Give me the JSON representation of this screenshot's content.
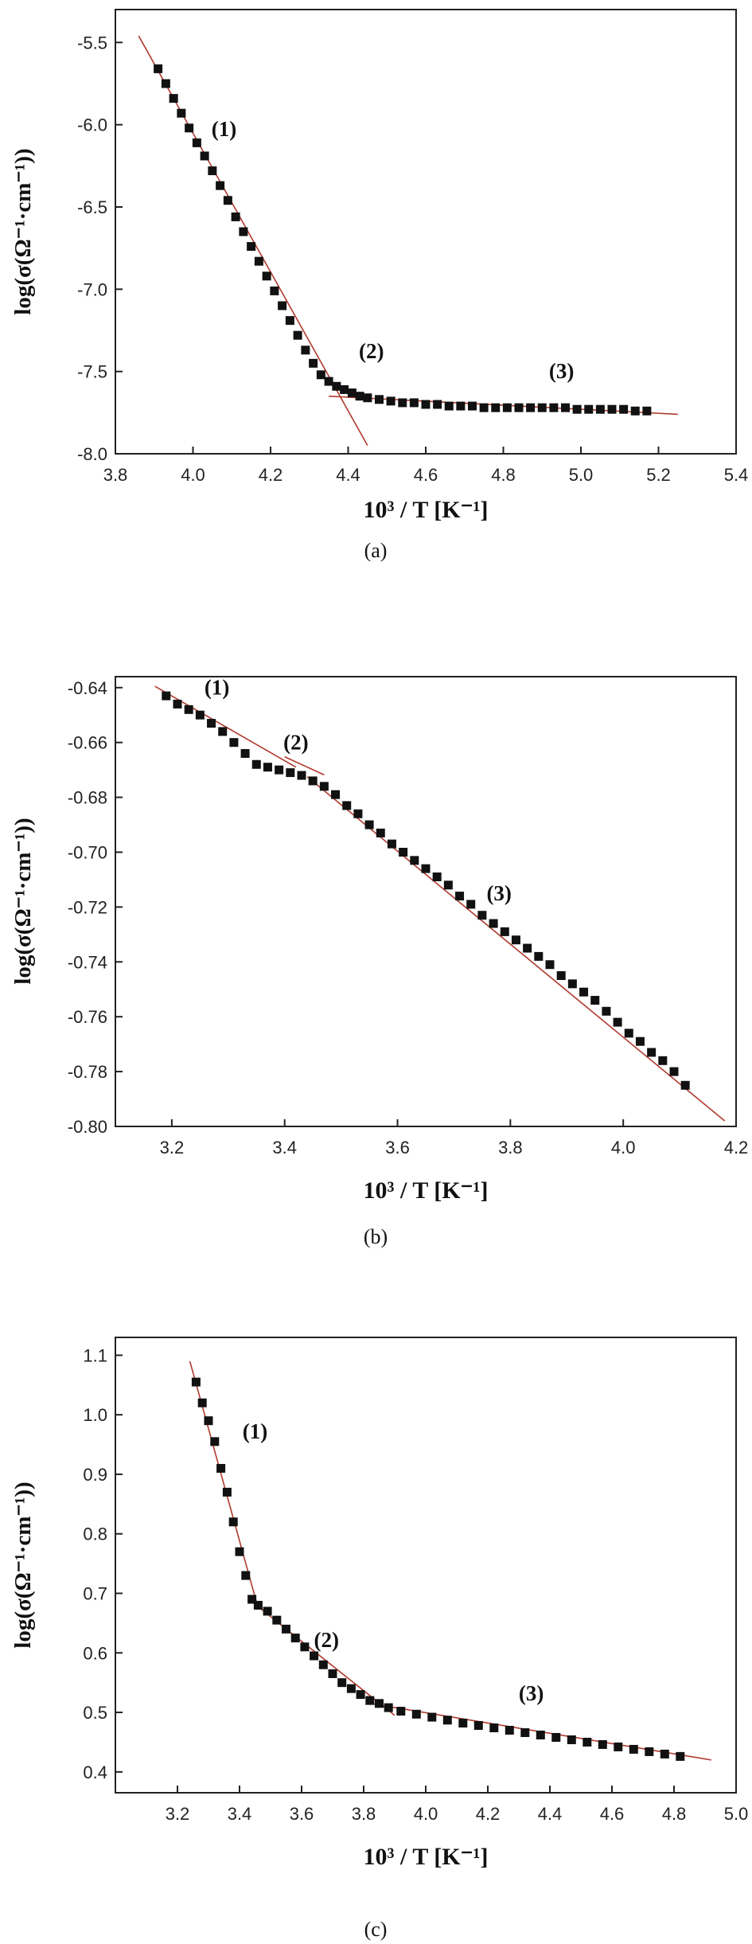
{
  "chart_data": [
    {
      "type": "scatter",
      "caption": "(a)",
      "xlabel": "10³ / T [K⁻¹]",
      "ylabel": "log(σ(Ω⁻¹·cm⁻¹))",
      "xlim": [
        3.8,
        5.4
      ],
      "ylim": [
        -8.0,
        -5.3
      ],
      "xticks": [
        "3.8",
        "4.0",
        "4.2",
        "4.4",
        "4.6",
        "4.8",
        "5.0",
        "5.2",
        "5.4"
      ],
      "xtick_values": [
        3.8,
        4.0,
        4.2,
        4.4,
        4.6,
        4.8,
        5.0,
        5.2,
        5.4
      ],
      "yticks": [
        "-8.0",
        "-7.5",
        "-7.0",
        "-6.5",
        "-6.0",
        "-5.5"
      ],
      "ytick_values": [
        -8.0,
        -7.5,
        -7.0,
        -6.5,
        -6.0,
        -5.5
      ],
      "region_labels": [
        {
          "text": "(1)",
          "x": 4.08,
          "y": -6.07
        },
        {
          "text": "(2)",
          "x": 4.46,
          "y": -7.42
        },
        {
          "text": "(3)",
          "x": 4.95,
          "y": -7.54
        }
      ],
      "fit_lines": [
        {
          "x": [
            3.86,
            4.45
          ],
          "y": [
            -5.46,
            -7.95
          ]
        },
        {
          "x": [
            4.35,
            5.25
          ],
          "y": [
            -7.65,
            -7.76
          ]
        }
      ],
      "points": {
        "x": [
          3.91,
          3.93,
          3.95,
          3.97,
          3.99,
          4.01,
          4.03,
          4.05,
          4.07,
          4.09,
          4.11,
          4.13,
          4.15,
          4.17,
          4.19,
          4.21,
          4.23,
          4.25,
          4.27,
          4.29,
          4.31,
          4.33,
          4.35,
          4.37,
          4.39,
          4.41,
          4.43,
          4.45,
          4.48,
          4.51,
          4.54,
          4.57,
          4.6,
          4.63,
          4.66,
          4.69,
          4.72,
          4.75,
          4.78,
          4.81,
          4.84,
          4.87,
          4.9,
          4.93,
          4.96,
          4.99,
          5.02,
          5.05,
          5.08,
          5.11,
          5.14,
          5.17
        ],
        "y": [
          -5.66,
          -5.75,
          -5.84,
          -5.93,
          -6.02,
          -6.11,
          -6.19,
          -6.28,
          -6.37,
          -6.46,
          -6.56,
          -6.65,
          -6.74,
          -6.83,
          -6.92,
          -7.01,
          -7.1,
          -7.19,
          -7.28,
          -7.37,
          -7.45,
          -7.52,
          -7.56,
          -7.59,
          -7.61,
          -7.63,
          -7.65,
          -7.66,
          -7.67,
          -7.68,
          -7.69,
          -7.69,
          -7.7,
          -7.7,
          -7.71,
          -7.71,
          -7.71,
          -7.72,
          -7.72,
          -7.72,
          -7.72,
          -7.72,
          -7.72,
          -7.72,
          -7.72,
          -7.73,
          -7.73,
          -7.73,
          -7.73,
          -7.73,
          -7.74,
          -7.74
        ]
      }
    },
    {
      "type": "scatter",
      "caption": "(b)",
      "xlabel": "10³ / T [K⁻¹]",
      "ylabel": "log(σ(Ω⁻¹·cm⁻¹))",
      "xlim": [
        3.1,
        4.2
      ],
      "ylim": [
        -0.8,
        -0.636
      ],
      "xticks": [
        "3.2",
        "3.4",
        "3.6",
        "3.8",
        "4.0",
        "4.2"
      ],
      "xtick_values": [
        3.2,
        3.4,
        3.6,
        3.8,
        4.0,
        4.2
      ],
      "yticks": [
        "-0.80",
        "-0.78",
        "-0.76",
        "-0.74",
        "-0.72",
        "-0.70",
        "-0.68",
        "-0.66",
        "-0.64"
      ],
      "ytick_values": [
        -0.8,
        -0.78,
        -0.76,
        -0.74,
        -0.72,
        -0.7,
        -0.68,
        -0.66,
        -0.64
      ],
      "region_labels": [
        {
          "text": "(1)",
          "x": 3.28,
          "y": -0.6425
        },
        {
          "text": "(2)",
          "x": 3.42,
          "y": -0.6625
        },
        {
          "text": "(3)",
          "x": 3.78,
          "y": -0.7175
        }
      ],
      "fit_lines": [
        {
          "x": [
            3.17,
            3.42
          ],
          "y": [
            -0.6395,
            -0.669
          ]
        },
        {
          "x": [
            3.4,
            3.47
          ],
          "y": [
            -0.6652,
            -0.6718
          ]
        },
        {
          "x": [
            3.44,
            4.18
          ],
          "y": [
            -0.6725,
            -0.798
          ]
        }
      ],
      "points": {
        "x": [
          3.19,
          3.21,
          3.23,
          3.25,
          3.27,
          3.29,
          3.31,
          3.33,
          3.35,
          3.37,
          3.39,
          3.41,
          3.43,
          3.45,
          3.47,
          3.49,
          3.51,
          3.53,
          3.55,
          3.57,
          3.59,
          3.61,
          3.63,
          3.65,
          3.67,
          3.69,
          3.71,
          3.73,
          3.75,
          3.77,
          3.79,
          3.81,
          3.83,
          3.85,
          3.87,
          3.89,
          3.91,
          3.93,
          3.95,
          3.97,
          3.99,
          4.01,
          4.03,
          4.05,
          4.07,
          4.09,
          4.11
        ],
        "y": [
          -0.643,
          -0.646,
          -0.648,
          -0.65,
          -0.653,
          -0.656,
          -0.66,
          -0.664,
          -0.668,
          -0.669,
          -0.67,
          -0.671,
          -0.672,
          -0.674,
          -0.676,
          -0.679,
          -0.683,
          -0.686,
          -0.69,
          -0.693,
          -0.697,
          -0.7,
          -0.703,
          -0.706,
          -0.709,
          -0.712,
          -0.716,
          -0.719,
          -0.723,
          -0.726,
          -0.729,
          -0.732,
          -0.735,
          -0.738,
          -0.741,
          -0.745,
          -0.748,
          -0.751,
          -0.754,
          -0.758,
          -0.762,
          -0.766,
          -0.769,
          -0.773,
          -0.776,
          -0.78,
          -0.785
        ]
      }
    },
    {
      "type": "scatter",
      "caption": "(c)",
      "xlabel": "10³ / T [K⁻¹]",
      "ylabel": "log(σ(Ω⁻¹·cm⁻¹))",
      "xlim": [
        3.0,
        5.0
      ],
      "ylim": [
        0.365,
        1.13
      ],
      "xticks": [
        "3.2",
        "3.4",
        "3.6",
        "3.8",
        "4.0",
        "4.2",
        "4.4",
        "4.6",
        "4.8",
        "5.0"
      ],
      "xtick_values": [
        3.2,
        3.4,
        3.6,
        3.8,
        4.0,
        4.2,
        4.4,
        4.6,
        4.8,
        5.0
      ],
      "yticks": [
        "0.4",
        "0.5",
        "0.6",
        "0.7",
        "0.8",
        "0.9",
        "1.0",
        "1.1"
      ],
      "ytick_values": [
        0.4,
        0.5,
        0.6,
        0.7,
        0.8,
        0.9,
        1.0,
        1.1
      ],
      "region_labels": [
        {
          "text": "(1)",
          "x": 3.45,
          "y": 0.96
        },
        {
          "text": "(2)",
          "x": 3.68,
          "y": 0.61
        },
        {
          "text": "(3)",
          "x": 4.34,
          "y": 0.52
        }
      ],
      "fit_lines": [
        {
          "x": [
            3.24,
            3.46
          ],
          "y": [
            1.09,
            0.675
          ]
        },
        {
          "x": [
            3.43,
            3.9
          ],
          "y": [
            0.69,
            0.495
          ]
        },
        {
          "x": [
            3.82,
            4.92
          ],
          "y": [
            0.515,
            0.42
          ]
        }
      ],
      "points": {
        "x": [
          3.26,
          3.28,
          3.3,
          3.32,
          3.34,
          3.36,
          3.38,
          3.4,
          3.42,
          3.44,
          3.46,
          3.49,
          3.52,
          3.55,
          3.58,
          3.61,
          3.64,
          3.67,
          3.7,
          3.73,
          3.76,
          3.79,
          3.82,
          3.85,
          3.88,
          3.92,
          3.97,
          4.02,
          4.07,
          4.12,
          4.17,
          4.22,
          4.27,
          4.32,
          4.37,
          4.42,
          4.47,
          4.52,
          4.57,
          4.62,
          4.67,
          4.72,
          4.77,
          4.82
        ],
        "y": [
          1.055,
          1.02,
          0.99,
          0.955,
          0.91,
          0.87,
          0.82,
          0.77,
          0.73,
          0.69,
          0.68,
          0.67,
          0.655,
          0.64,
          0.625,
          0.61,
          0.595,
          0.58,
          0.565,
          0.55,
          0.54,
          0.53,
          0.52,
          0.515,
          0.508,
          0.502,
          0.497,
          0.492,
          0.487,
          0.482,
          0.478,
          0.474,
          0.47,
          0.466,
          0.462,
          0.458,
          0.454,
          0.45,
          0.446,
          0.442,
          0.438,
          0.434,
          0.43,
          0.426
        ]
      }
    }
  ],
  "colors": {
    "marker": "#111111",
    "fit_line": "#b03a2e",
    "axis": "#222222"
  }
}
